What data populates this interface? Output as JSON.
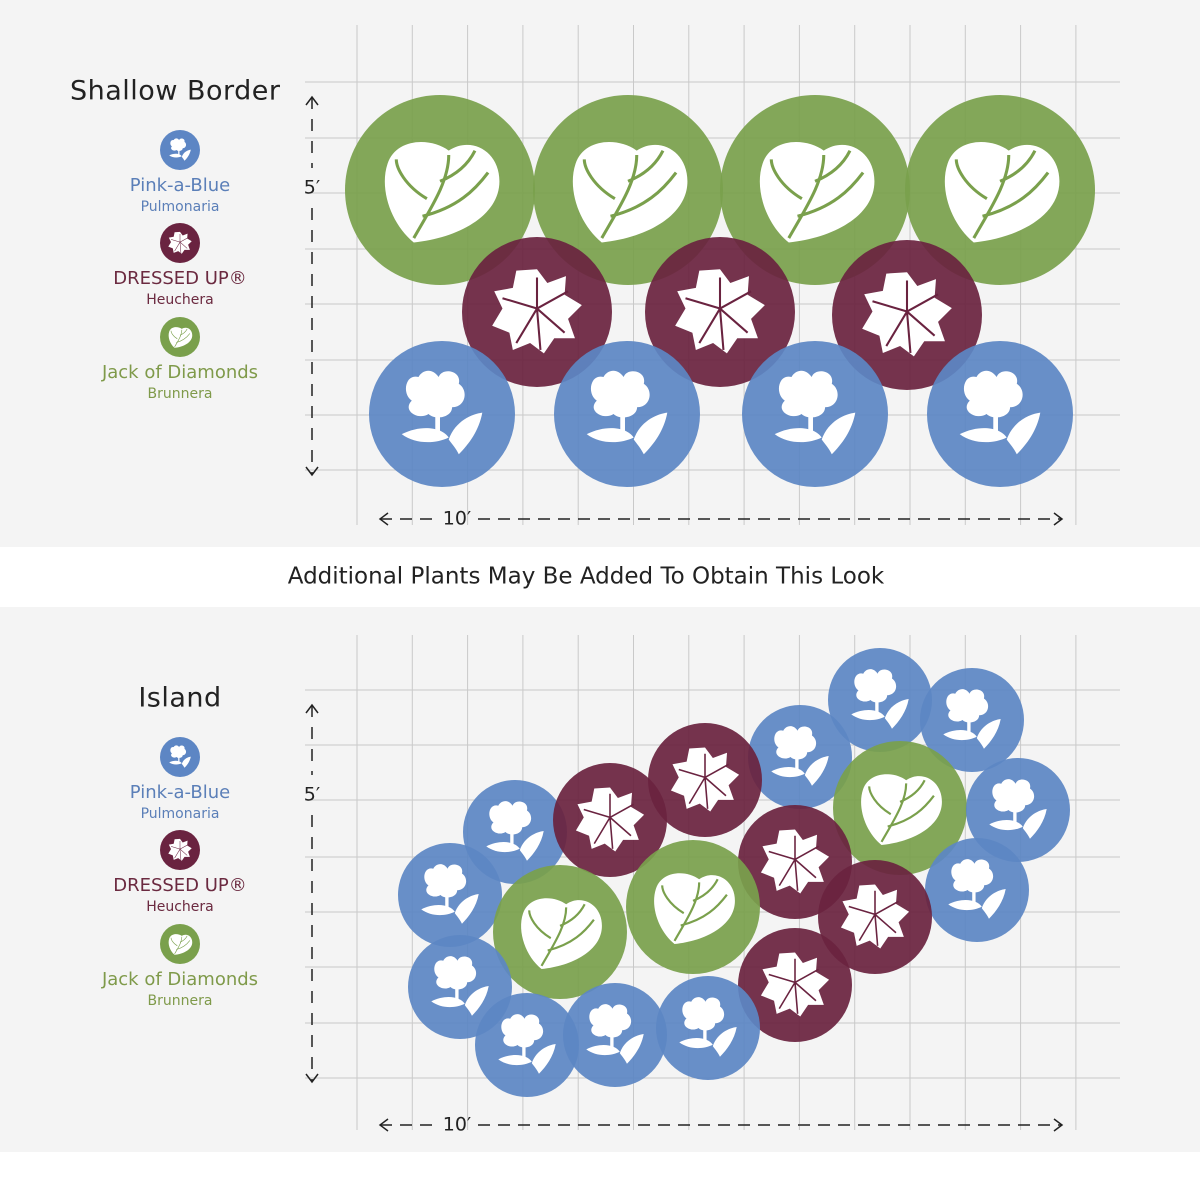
{
  "caption": "Additional Plants May Be Added To Obtain This Look",
  "panels": [
    {
      "title": "Shallow Border",
      "legend": [
        {
          "name": "Pink-a-Blue",
          "genus": "Pulmonaria"
        },
        {
          "name": "DRESSED UP®",
          "genus": "Heuchera"
        },
        {
          "name": "Jack of Diamonds",
          "genus": "Brunnera"
        }
      ],
      "height_label": "5′",
      "width_label": "10′"
    },
    {
      "title": "Island",
      "legend": [
        {
          "name": "Pink-a-Blue",
          "genus": "Pulmonaria"
        },
        {
          "name": "DRESSED UP®",
          "genus": "Heuchera"
        },
        {
          "name": "Jack of Diamonds",
          "genus": "Brunnera"
        }
      ],
      "height_label": "5′",
      "width_label": "10′"
    }
  ]
}
